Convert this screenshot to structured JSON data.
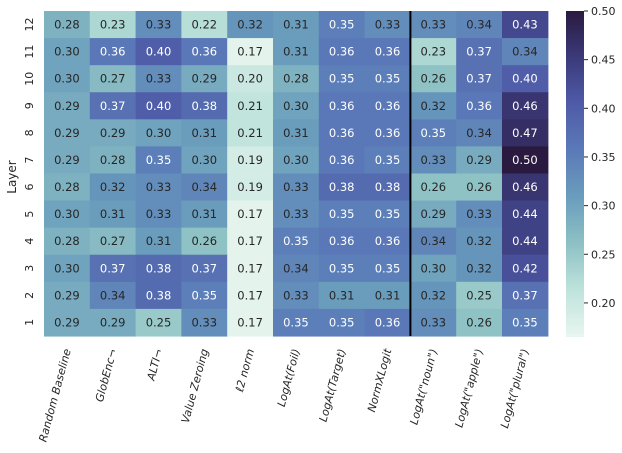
{
  "chart_data": {
    "type": "heatmap",
    "title": "",
    "xlabel": "",
    "ylabel": "Layer",
    "columns": [
      "Random Baseline",
      "GlobEnc¬",
      "ALTI¬",
      "Value Zeroing",
      "ℓ2 norm",
      "LogAt(Foil)",
      "LogAt(Target)",
      "NormXLogit",
      "LogAt(\"noun\")",
      "LogAt(\"apple\")",
      "LogAt(\"plural\")"
    ],
    "rows": [
      "12",
      "11",
      "10",
      "9",
      "8",
      "7",
      "6",
      "5",
      "4",
      "3",
      "2",
      "1"
    ],
    "values": [
      [
        0.28,
        0.23,
        0.33,
        0.22,
        0.32,
        0.31,
        0.35,
        0.33,
        0.33,
        0.34,
        0.43
      ],
      [
        0.3,
        0.36,
        0.4,
        0.36,
        0.17,
        0.31,
        0.36,
        0.36,
        0.23,
        0.37,
        0.34
      ],
      [
        0.3,
        0.27,
        0.33,
        0.29,
        0.2,
        0.28,
        0.35,
        0.35,
        0.26,
        0.37,
        0.4
      ],
      [
        0.29,
        0.37,
        0.4,
        0.38,
        0.21,
        0.3,
        0.36,
        0.36,
        0.32,
        0.36,
        0.46
      ],
      [
        0.29,
        0.29,
        0.3,
        0.31,
        0.21,
        0.31,
        0.36,
        0.36,
        0.35,
        0.34,
        0.47
      ],
      [
        0.29,
        0.28,
        0.35,
        0.3,
        0.19,
        0.3,
        0.36,
        0.35,
        0.33,
        0.29,
        0.5
      ],
      [
        0.28,
        0.32,
        0.33,
        0.34,
        0.19,
        0.33,
        0.38,
        0.38,
        0.26,
        0.26,
        0.46
      ],
      [
        0.3,
        0.31,
        0.33,
        0.31,
        0.17,
        0.33,
        0.35,
        0.35,
        0.29,
        0.33,
        0.44
      ],
      [
        0.28,
        0.27,
        0.31,
        0.26,
        0.17,
        0.35,
        0.36,
        0.36,
        0.34,
        0.32,
        0.44
      ],
      [
        0.3,
        0.37,
        0.38,
        0.37,
        0.17,
        0.34,
        0.35,
        0.35,
        0.3,
        0.32,
        0.42
      ],
      [
        0.29,
        0.34,
        0.38,
        0.35,
        0.17,
        0.33,
        0.31,
        0.31,
        0.32,
        0.25,
        0.37
      ],
      [
        0.29,
        0.29,
        0.25,
        0.33,
        0.17,
        0.35,
        0.35,
        0.36,
        0.33,
        0.26,
        0.35
      ]
    ],
    "value_format": "2 decimals",
    "color_scale": {
      "name": "mako-like sequential (light mint to dark purple)",
      "vmin": 0.165,
      "vmax": 0.5,
      "stops": [
        "#e8f6ef",
        "#bfe3dc",
        "#8ec1c4",
        "#6a9dbc",
        "#5b7ab8",
        "#4f5ba8",
        "#3b3a7a",
        "#2a1a40"
      ]
    },
    "colorbar_ticks": [
      "0.20",
      "0.25",
      "0.30",
      "0.35",
      "0.40",
      "0.45",
      "0.50"
    ],
    "colorbar_tick_values": [
      0.2,
      0.25,
      0.3,
      0.35,
      0.4,
      0.45,
      0.5
    ],
    "separator_after_column": "NormXLogit",
    "label_dark_text": "#262626",
    "label_light_text": "#ffffff"
  }
}
